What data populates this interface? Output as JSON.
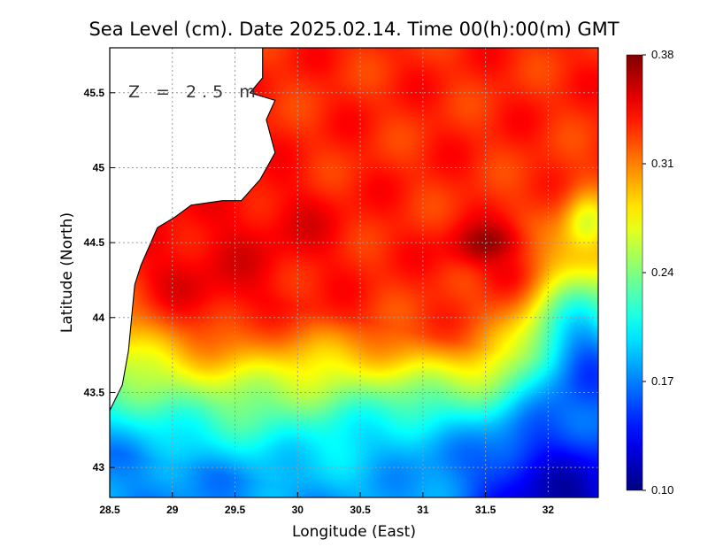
{
  "chart_data": {
    "type": "heatmap",
    "title": "Sea Level (cm). Date 2025.02.14. Time 00(h):00(m) GMT",
    "xlabel": "Longitude (East)",
    "ylabel": "Latitude (North)",
    "annotation": "Z = 2.5 m",
    "xlim": [
      28.5,
      32.4
    ],
    "ylim": [
      42.8,
      45.8
    ],
    "x_ticks": [
      28.5,
      29,
      29.5,
      30,
      30.5,
      31,
      31.5,
      32
    ],
    "x_tick_labels": [
      "28.5",
      "29",
      "29.5",
      "30",
      "30.5",
      "31",
      "31.5",
      "32"
    ],
    "y_ticks": [
      43,
      43.5,
      44,
      44.5,
      45,
      45.5
    ],
    "y_tick_labels": [
      "43",
      "43.5",
      "44",
      "44.5",
      "45",
      "45.5"
    ],
    "grid": true,
    "colorbar": {
      "min": 0.1,
      "max": 0.38,
      "ticks": [
        0.1,
        0.17,
        0.24,
        0.31,
        0.38
      ],
      "tick_labels": [
        "0.10",
        "0.17",
        "0.24",
        "0.31",
        "0.38"
      ],
      "colormap": "jet"
    },
    "field": {
      "description_values_by_region": true,
      "background": 0.335,
      "features": [
        {
          "lon": 31.55,
          "lat": 44.47,
          "value": 0.378,
          "sx": 0.22,
          "sy": 0.1
        },
        {
          "lon": 31.75,
          "lat": 44.3,
          "value": 0.36,
          "sx": 0.2,
          "sy": 0.14
        },
        {
          "lon": 29.3,
          "lat": 44.3,
          "value": 0.35,
          "sx": 0.45,
          "sy": 0.35
        },
        {
          "lon": 29.9,
          "lat": 44.6,
          "value": 0.348,
          "sx": 0.35,
          "sy": 0.2
        },
        {
          "lon": 30.9,
          "lat": 42.95,
          "value": 0.185,
          "sx": 0.7,
          "sy": 0.4
        },
        {
          "lon": 32.2,
          "lat": 42.85,
          "value": 0.1,
          "sx": 0.55,
          "sy": 0.45
        },
        {
          "lon": 32.3,
          "lat": 43.6,
          "value": 0.155,
          "sx": 0.35,
          "sy": 0.5
        },
        {
          "lon": 32.3,
          "lat": 44.6,
          "value": 0.265,
          "sx": 0.12,
          "sy": 0.15
        }
      ]
    }
  }
}
